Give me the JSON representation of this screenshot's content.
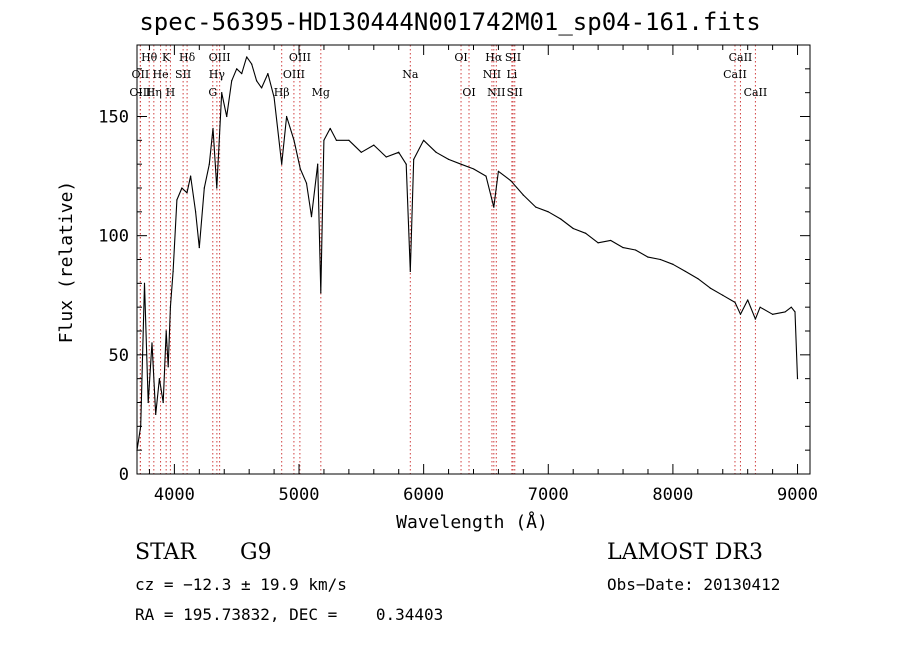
{
  "chart_data": {
    "type": "line",
    "title": "spec-56395-HD130444N001742M01_sp04-161.fits",
    "xlabel": "Wavelength (Å)",
    "ylabel": "Flux (relative)",
    "xlim": [
      3700,
      9100
    ],
    "ylim": [
      0,
      180
    ],
    "xticks": [
      4000,
      5000,
      6000,
      7000,
      8000,
      9000
    ],
    "yticks": [
      0,
      50,
      100,
      150
    ],
    "series": [
      {
        "name": "spectrum",
        "x": [
          3700,
          3730,
          3760,
          3790,
          3820,
          3850,
          3880,
          3910,
          3934,
          3950,
          3968,
          3990,
          4020,
          4060,
          4101,
          4130,
          4170,
          4200,
          4240,
          4280,
          4310,
          4340,
          4380,
          4420,
          4460,
          4500,
          4540,
          4580,
          4620,
          4660,
          4700,
          4750,
          4800,
          4861,
          4900,
          4960,
          5010,
          5060,
          5100,
          5150,
          5175,
          5200,
          5250,
          5300,
          5400,
          5500,
          5600,
          5700,
          5800,
          5860,
          5893,
          5920,
          6000,
          6100,
          6200,
          6300,
          6400,
          6500,
          6563,
          6600,
          6700,
          6800,
          6900,
          7000,
          7100,
          7200,
          7300,
          7400,
          7500,
          7600,
          7700,
          7800,
          7900,
          8000,
          8100,
          8200,
          8300,
          8400,
          8498,
          8542,
          8600,
          8662,
          8700,
          8800,
          8900,
          8950,
          8980,
          9000
        ],
        "values": [
          10,
          20,
          80,
          30,
          55,
          25,
          40,
          30,
          60,
          45,
          70,
          85,
          115,
          120,
          118,
          125,
          110,
          95,
          120,
          130,
          145,
          120,
          160,
          150,
          165,
          170,
          168,
          175,
          172,
          165,
          162,
          168,
          158,
          130,
          150,
          140,
          128,
          122,
          108,
          130,
          76,
          140,
          145,
          140,
          140,
          135,
          138,
          133,
          135,
          130,
          85,
          132,
          140,
          135,
          132,
          130,
          128,
          125,
          112,
          127,
          123,
          117,
          112,
          110,
          107,
          103,
          101,
          97,
          98,
          95,
          94,
          91,
          90,
          88,
          85,
          82,
          78,
          75,
          72,
          67,
          73,
          65,
          70,
          67,
          68,
          70,
          68,
          40
        ]
      }
    ],
    "lines": [
      {
        "label": "Hθ",
        "x": 3798,
        "row": 0
      },
      {
        "label": "K",
        "x": 3934,
        "row": 0
      },
      {
        "label": "Hδ",
        "x": 4102,
        "row": 0
      },
      {
        "label": "OIII",
        "x": 4363,
        "row": 0
      },
      {
        "label": "OIII",
        "x": 5007,
        "row": 0
      },
      {
        "label": "OI",
        "x": 6300,
        "row": 0
      },
      {
        "label": "Hα",
        "x": 6563,
        "row": 0
      },
      {
        "label": "SII",
        "x": 6717,
        "row": 0
      },
      {
        "label": "CaII",
        "x": 8542,
        "row": 0
      },
      {
        "label": "OII",
        "x": 3727,
        "row": 1
      },
      {
        "label": "He",
        "x": 3889,
        "row": 1
      },
      {
        "label": "SII",
        "x": 4070,
        "row": 1
      },
      {
        "label": "Hγ",
        "x": 4341,
        "row": 1
      },
      {
        "label": "OIII",
        "x": 4959,
        "row": 1
      },
      {
        "label": "Na",
        "x": 5893,
        "row": 1
      },
      {
        "label": "NII",
        "x": 6548,
        "row": 1
      },
      {
        "label": "Li",
        "x": 6708,
        "row": 1
      },
      {
        "label": "CaII",
        "x": 8498,
        "row": 1
      },
      {
        "label": "OIII",
        "x": 3727,
        "row": 2
      },
      {
        "label": "Hη",
        "x": 3835,
        "row": 2
      },
      {
        "label": "H",
        "x": 3968,
        "row": 2
      },
      {
        "label": "G",
        "x": 4308,
        "row": 2
      },
      {
        "label": "Hβ",
        "x": 4861,
        "row": 2
      },
      {
        "label": "Mg",
        "x": 5175,
        "row": 2
      },
      {
        "label": "OI",
        "x": 6364,
        "row": 2
      },
      {
        "label": "NII",
        "x": 6583,
        "row": 2
      },
      {
        "label": "SII",
        "x": 6731,
        "row": 2
      },
      {
        "label": "CaII",
        "x": 8662,
        "row": 2
      }
    ]
  },
  "info": {
    "class_label": "STAR",
    "subclass": "G9",
    "survey": "LAMOST DR3",
    "cz": "cz = −12.3 ± 19.9 km/s",
    "obs_date": "Obs−Date: 20130412",
    "radec": "RA = 195.73832, DEC =    0.34403"
  }
}
